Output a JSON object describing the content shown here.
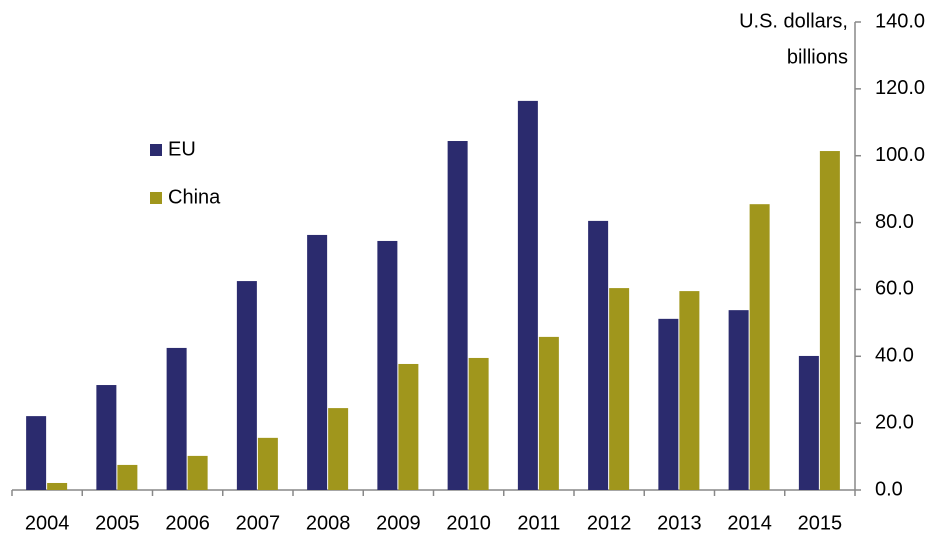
{
  "chart_data": {
    "type": "bar",
    "y_label": [
      "U.S. dollars,",
      "billions"
    ],
    "categories": [
      "2004",
      "2005",
      "2006",
      "2007",
      "2008",
      "2009",
      "2010",
      "2011",
      "2012",
      "2013",
      "2014",
      "2015"
    ],
    "series": [
      {
        "name": "EU",
        "color": "#2b2b6e",
        "values": [
          22.1,
          31.4,
          42.5,
          62.5,
          76.3,
          74.5,
          104.4,
          116.4,
          80.5,
          51.2,
          53.8,
          40.1
        ]
      },
      {
        "name": "China",
        "color": "#a0961c",
        "values": [
          2.1,
          7.5,
          10.2,
          15.6,
          24.5,
          37.7,
          39.5,
          45.8,
          60.4,
          59.5,
          85.5,
          101.4
        ]
      }
    ],
    "ylim": [
      0,
      140
    ],
    "yticks": [
      {
        "value": 0,
        "label": "0.0"
      },
      {
        "value": 20,
        "label": "20.0"
      },
      {
        "value": 40,
        "label": "40.0"
      },
      {
        "value": 60,
        "label": "60.0"
      },
      {
        "value": 80,
        "label": "80.0"
      },
      {
        "value": 100,
        "label": "100.0"
      },
      {
        "value": 120,
        "label": "120.0"
      },
      {
        "value": 140,
        "label": "140.0"
      }
    ],
    "grid": false,
    "axis_side": "right",
    "legend": "upper-left"
  }
}
